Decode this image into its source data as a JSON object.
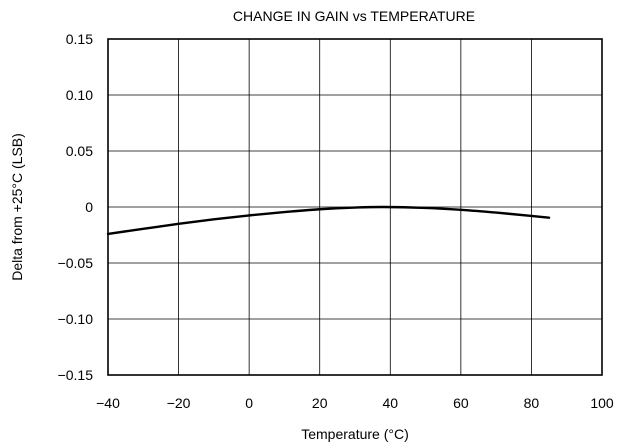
{
  "chart_data": {
    "type": "line",
    "title": "CHANGE IN GAIN vs TEMPERATURE",
    "xlabel": "Temperature (°C)",
    "ylabel": "Delta from +25°C (LSB)",
    "xlim": [
      -40,
      100
    ],
    "ylim": [
      -0.15,
      0.15
    ],
    "x_ticks": [
      -40,
      -20,
      0,
      20,
      40,
      60,
      80,
      100
    ],
    "y_ticks": [
      0.15,
      0.1,
      0.05,
      0,
      -0.05,
      -0.1,
      -0.15
    ],
    "x_tick_labels": [
      "−40",
      "−20",
      "0",
      "20",
      "40",
      "60",
      "80",
      "100"
    ],
    "y_tick_labels": [
      "0.15",
      "0.10",
      "0.05",
      "0",
      "−0.05",
      "−0.10",
      "−0.15"
    ],
    "grid": true,
    "series": [
      {
        "x": [
          -40,
          -30,
          -20,
          -10,
          0,
          10,
          20,
          30,
          38,
          50,
          60,
          70,
          80,
          85
        ],
        "y": [
          -0.024,
          -0.0195,
          -0.015,
          -0.011,
          -0.0075,
          -0.0045,
          -0.002,
          -0.0005,
          0.0,
          -0.0008,
          -0.0025,
          -0.005,
          -0.008,
          -0.0095
        ]
      }
    ]
  }
}
